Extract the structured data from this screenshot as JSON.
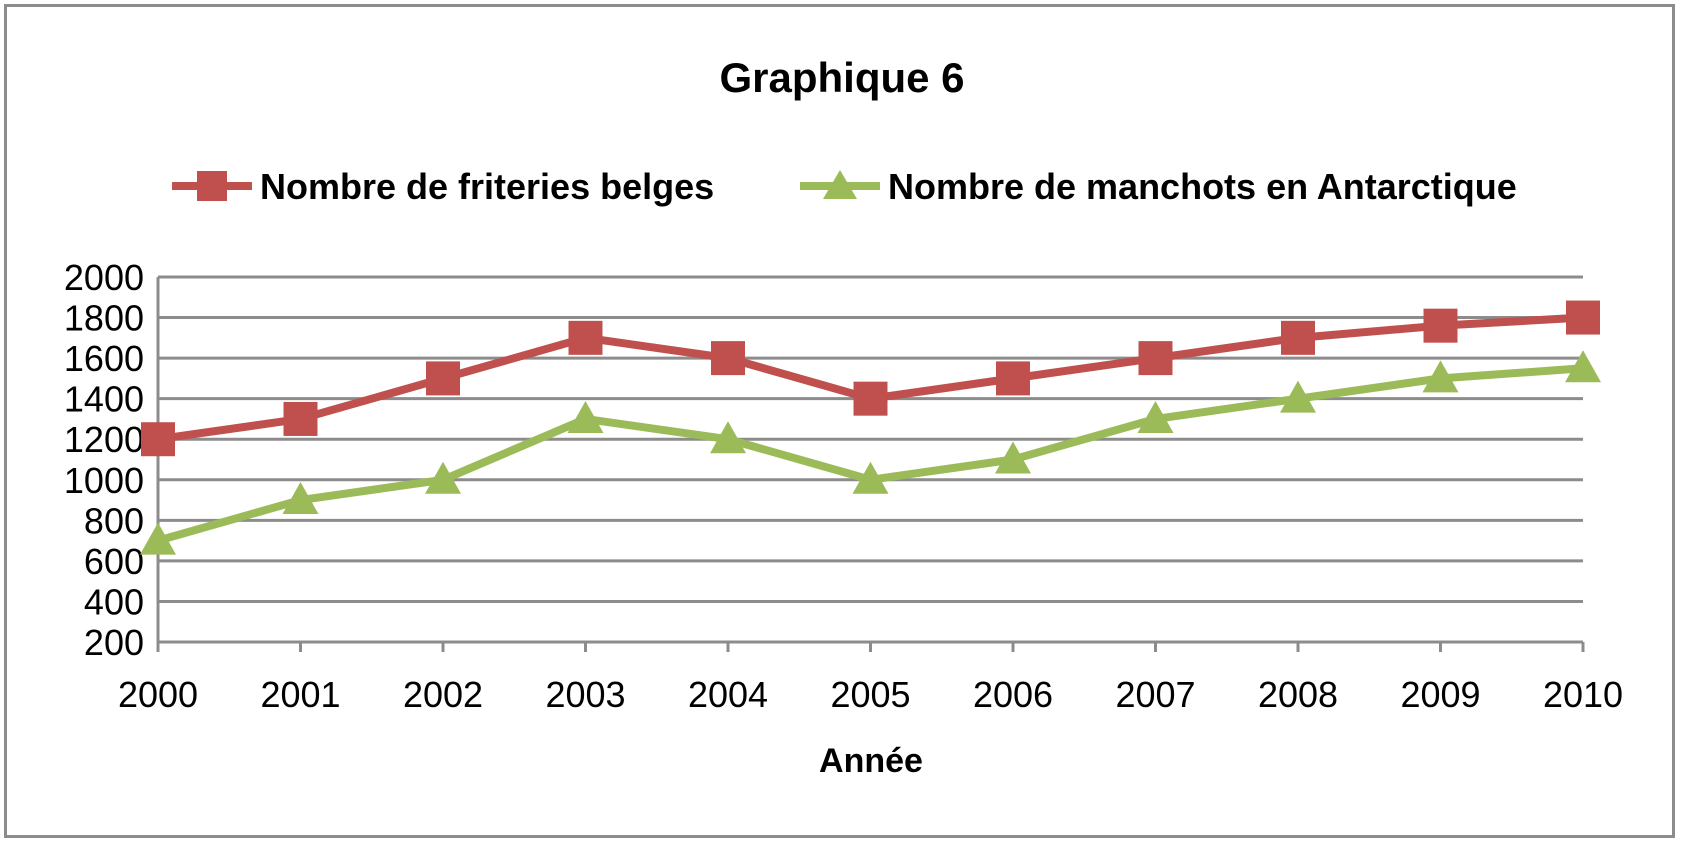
{
  "chart_data": {
    "type": "line",
    "title": "Graphique 6",
    "xlabel": "Année",
    "ylabel": "",
    "x": [
      "2000",
      "2001",
      "2002",
      "2003",
      "2004",
      "2005",
      "2006",
      "2007",
      "2008",
      "2009",
      "2010"
    ],
    "ylim": [
      200,
      2000
    ],
    "yticks": [
      2000,
      1800,
      1600,
      1400,
      1200,
      1000,
      800,
      600,
      400,
      200
    ],
    "grid": true,
    "legend_position": "top",
    "series": [
      {
        "name": "Nombre de friteries belges",
        "color": "#c0504d",
        "marker": "square",
        "values": [
          1200,
          1300,
          1500,
          1700,
          1600,
          1400,
          1500,
          1600,
          1700,
          1760,
          1800
        ]
      },
      {
        "name": "Nombre de manchots en Antarctique",
        "color": "#9bbb59",
        "marker": "triangle",
        "values": [
          700,
          900,
          1000,
          1300,
          1200,
          1000,
          1100,
          1300,
          1400,
          1500,
          1550
        ]
      }
    ]
  }
}
